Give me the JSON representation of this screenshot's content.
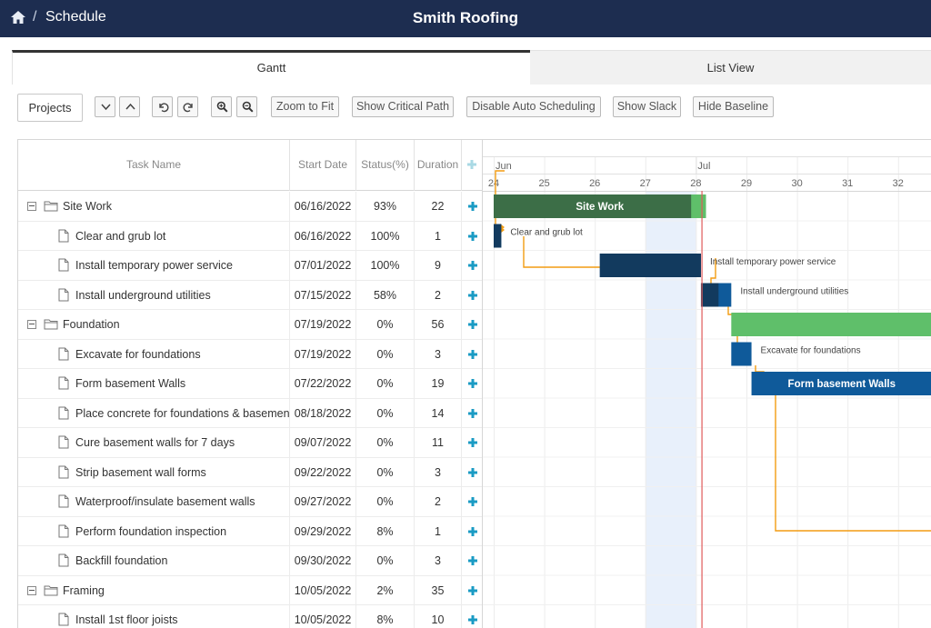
{
  "header": {
    "breadcrumb": "Schedule",
    "separator": "/",
    "title": "Smith Roofing",
    "home_icon": "home-icon"
  },
  "tabs": [
    {
      "label": "Gantt",
      "active": true
    },
    {
      "label": "List View",
      "active": false
    }
  ],
  "toolbar": {
    "projects_label": "Projects",
    "icon_buttons": [
      "chevron-down-icon",
      "chevron-up-icon",
      "undo-icon",
      "redo-icon",
      "zoom-in-icon",
      "zoom-out-icon"
    ],
    "zoom_to_fit": "Zoom to Fit",
    "show_critical_path": "Show Critical Path",
    "disable_auto_scheduling": "Disable Auto Scheduling",
    "show_slack": "Show Slack",
    "hide_baseline": "Hide Baseline"
  },
  "grid": {
    "columns": {
      "task_name": "Task Name",
      "start_date": "Start Date",
      "status": "Status(%)",
      "duration": "Duration"
    },
    "rows": [
      {
        "type": "parent",
        "name": "Site Work",
        "start": "06/16/2022",
        "status": "93%",
        "duration": "22"
      },
      {
        "type": "task",
        "name": "Clear and grub lot",
        "start": "06/16/2022",
        "status": "100%",
        "duration": "1"
      },
      {
        "type": "task",
        "name": "Install temporary power service",
        "start": "07/01/2022",
        "status": "100%",
        "duration": "9"
      },
      {
        "type": "task",
        "name": "Install underground utilities",
        "start": "07/15/2022",
        "status": "58%",
        "duration": "2"
      },
      {
        "type": "parent",
        "name": "Foundation",
        "start": "07/19/2022",
        "status": "0%",
        "duration": "56"
      },
      {
        "type": "task",
        "name": "Excavate for foundations",
        "start": "07/19/2022",
        "status": "0%",
        "duration": "3"
      },
      {
        "type": "task",
        "name": "Form basement Walls",
        "start": "07/22/2022",
        "status": "0%",
        "duration": "19"
      },
      {
        "type": "task",
        "name": "Place concrete for foundations & basement",
        "start": "08/18/2022",
        "status": "0%",
        "duration": "14"
      },
      {
        "type": "task",
        "name": "Cure basement walls for 7 days",
        "start": "09/07/2022",
        "status": "0%",
        "duration": "11"
      },
      {
        "type": "task",
        "name": "Strip basement wall forms",
        "start": "09/22/2022",
        "status": "0%",
        "duration": "3"
      },
      {
        "type": "task",
        "name": "Waterproof/insulate basement walls",
        "start": "09/27/2022",
        "status": "0%",
        "duration": "2"
      },
      {
        "type": "task",
        "name": "Perform foundation inspection",
        "start": "09/29/2022",
        "status": "8%",
        "duration": "1"
      },
      {
        "type": "task",
        "name": "Backfill foundation",
        "start": "09/30/2022",
        "status": "0%",
        "duration": "3"
      },
      {
        "type": "parent",
        "name": "Framing",
        "start": "10/05/2022",
        "status": "2%",
        "duration": "35"
      },
      {
        "type": "task",
        "name": "Install 1st floor joists",
        "start": "10/05/2022",
        "status": "8%",
        "duration": "10"
      }
    ]
  },
  "timeline": {
    "months": [
      {
        "label": "Jun",
        "week": 24
      },
      {
        "label": "Jul",
        "week": 28
      }
    ],
    "weeks": [
      24,
      25,
      26,
      27,
      28,
      29,
      30,
      31,
      32
    ],
    "highlight_week": 27,
    "today_week": 28.12,
    "bars": [
      {
        "row": 0,
        "start": 24.0,
        "end": 28.2,
        "kind": "parent",
        "label": "Site Work",
        "label_inside": true,
        "progress": 0.93
      },
      {
        "row": 1,
        "start": 24.0,
        "end": 24.15,
        "kind": "task",
        "label": "Clear and grub lot",
        "label_inside": false,
        "progress": 1.0
      },
      {
        "row": 2,
        "start": 26.1,
        "end": 28.1,
        "kind": "task",
        "label": "Install temporary power service",
        "label_inside": false,
        "progress": 1.0
      },
      {
        "row": 3,
        "start": 28.1,
        "end": 28.7,
        "kind": "task",
        "label": "Install underground utilities",
        "label_inside": false,
        "progress": 0.58
      },
      {
        "row": 4,
        "start": 28.7,
        "end": 34.0,
        "kind": "parent",
        "label": "",
        "label_inside": true,
        "progress": 0
      },
      {
        "row": 5,
        "start": 28.7,
        "end": 29.1,
        "kind": "task",
        "label": "Excavate for foundations",
        "label_inside": false,
        "progress": 0
      },
      {
        "row": 6,
        "start": 29.1,
        "end": 34.0,
        "kind": "task",
        "label": "Form basement Walls",
        "label_inside": true,
        "progress": 0
      }
    ],
    "colors": {
      "parent": "#3c6e47",
      "parent_remaining": "#5fbf6a",
      "task": "#0f5a9a",
      "task_done": "#123a5e",
      "link": "#f39c12",
      "today": "#e05a5a",
      "highlight": "#e8f0fb"
    }
  }
}
